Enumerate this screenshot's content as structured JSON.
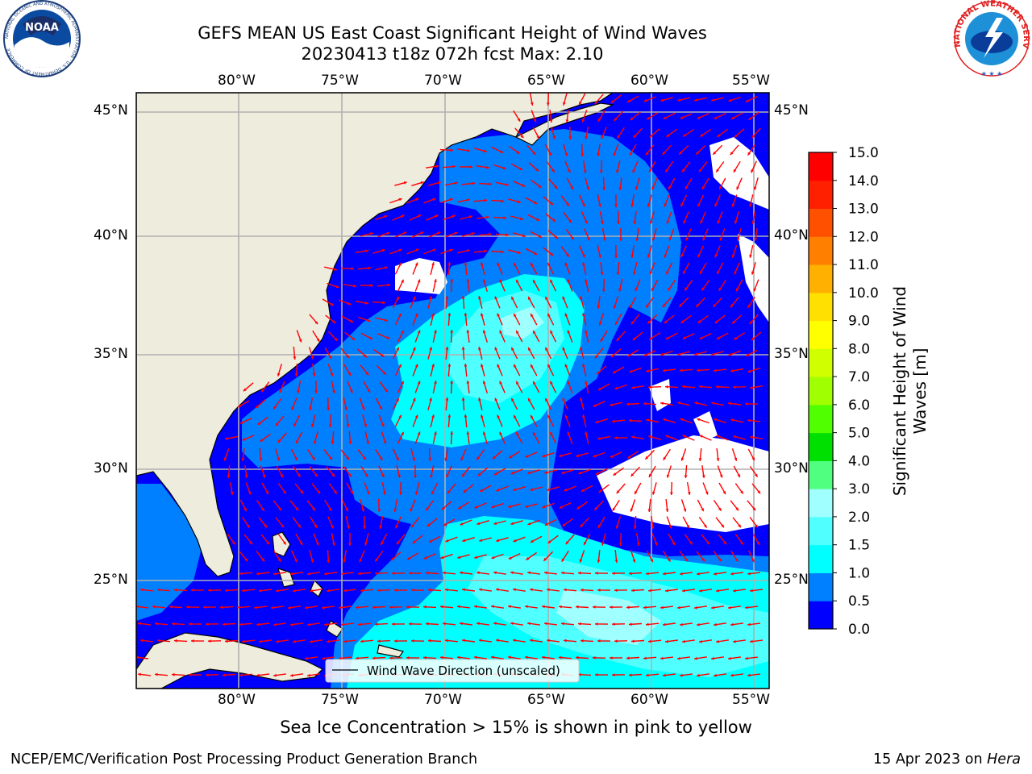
{
  "header": {
    "title": "GEFS MEAN US East Coast Significant Height of Wind Waves",
    "subtitle": "20230413 t18z 072h fcst   Max: 2.10"
  },
  "logos": {
    "noaa_text": "NOAA",
    "noaa_ring": "NATIONAL OCEANIC AND ATMOSPHERIC ADMINISTRATION · U.S. DEPARTMENT OF COMMERCE",
    "nws_ring": "NATIONAL WEATHER SERVICE"
  },
  "map": {
    "lon_labels": [
      "80°W",
      "75°W",
      "70°W",
      "65°W",
      "60°W",
      "55°W"
    ],
    "lat_labels": [
      "45°N",
      "40°N",
      "35°N",
      "30°N",
      "25°N"
    ],
    "legend_label": "Wind Wave Direction (unscaled)",
    "land_color": "#eeecdc",
    "arrow_color": "#ff0000"
  },
  "colorbar": {
    "title": "Significant Height of Wind Waves [m]",
    "title_line1": "Significant Height of Wind",
    "title_line2": "Waves [m]",
    "ticks": [
      "0.0",
      "0.5",
      "1.0",
      "1.5",
      "2.0",
      "3.0",
      "4.0",
      "5.0",
      "6.0",
      "7.0",
      "8.0",
      "9.0",
      "10.0",
      "11.0",
      "12.0",
      "13.0",
      "14.0",
      "15.0"
    ],
    "colors": [
      "#0000ff",
      "#0080ff",
      "#00ffff",
      "#50ffff",
      "#a0ffff",
      "#50ff80",
      "#00e000",
      "#50ff00",
      "#a0ff00",
      "#d0ff00",
      "#ffff00",
      "#ffe000",
      "#ffb000",
      "#ff8000",
      "#ff5000",
      "#ff2000",
      "#ff0000"
    ]
  },
  "footer": {
    "note": "Sea Ice Concentration > 15% is shown in pink to yellow",
    "left": "NCEP/EMC/Verification Post Processing Product Generation Branch",
    "right_date": "15 Apr 2023 on",
    "right_host": "Hera"
  }
}
